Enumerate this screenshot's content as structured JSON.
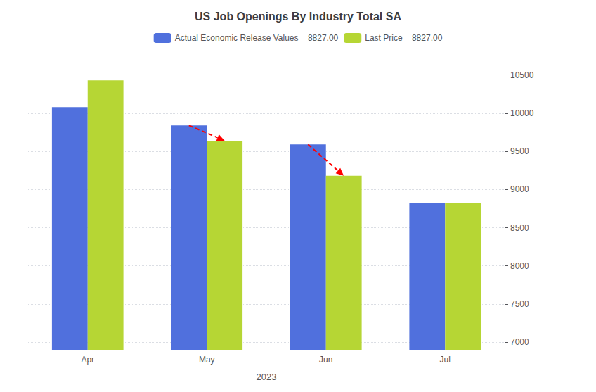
{
  "chart_data": {
    "type": "bar",
    "title": "US Job Openings By Industry Total SA",
    "x_label": "2023",
    "categories": [
      "Apr",
      "May",
      "Jun",
      "Jul"
    ],
    "series": [
      {
        "name": "Actual Economic Release Values    8827.00",
        "values": [
          10080,
          9840,
          9590,
          8827
        ]
      },
      {
        "name": "Last Price    8827.00",
        "values": [
          10430,
          9640,
          9180,
          8827
        ]
      }
    ],
    "ylim": [
      6900,
      10700
    ],
    "yticks": [
      7000,
      7500,
      8000,
      8500,
      9000,
      9500,
      10000,
      10500
    ],
    "grid": true,
    "legend": "top",
    "annotations": [
      {
        "text": "8827.00",
        "y": 8827,
        "color": "#2060A0"
      }
    ],
    "arrows": [
      {
        "category": "May",
        "from": 9840,
        "to": 9640,
        "color": "red",
        "line_style": "dashed"
      },
      {
        "category": "Jun",
        "from": 9590,
        "to": 9180,
        "color": "red",
        "line_style": "dashed"
      }
    ]
  }
}
